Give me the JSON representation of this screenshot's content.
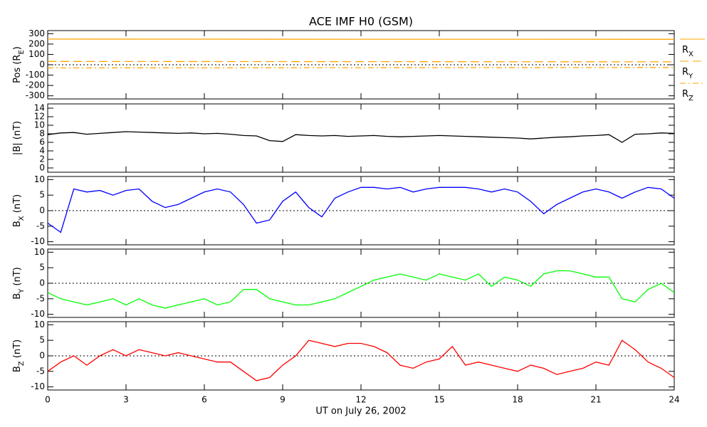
{
  "chart_data": [
    {
      "type": "line",
      "title": "ACE IMF H0 (GSM)",
      "ylabel": [
        "Pos (R",
        "E",
        ")"
      ],
      "ylim": [
        -330,
        330
      ],
      "yticks": [
        -300,
        -200,
        -100,
        0,
        100,
        200,
        300
      ],
      "zero_line": true,
      "series": [
        {
          "name": [
            "R",
            "X"
          ],
          "color": "#ffa500",
          "style": "solid",
          "x": [
            0,
            12,
            24
          ],
          "values": [
            248,
            247,
            246
          ]
        },
        {
          "name": [
            "R",
            "Y"
          ],
          "color": "#ffa500",
          "style": "dashed",
          "x": [
            0,
            12,
            24
          ],
          "values": [
            32,
            30,
            28
          ]
        },
        {
          "name": [
            "R",
            "Z"
          ],
          "color": "#ffa500",
          "style": "dash-dot",
          "x": [
            0,
            12,
            24
          ],
          "values": [
            -30,
            -28,
            -26
          ]
        }
      ]
    },
    {
      "type": "line",
      "ylabel": [
        "|B| (nT)"
      ],
      "ylim": [
        -1,
        15
      ],
      "yticks": [
        0,
        2,
        4,
        6,
        8,
        10,
        12,
        14
      ],
      "zero_line": false,
      "series": [
        {
          "color": "#000000",
          "style": "solid",
          "values": [
            7.8,
            8.2,
            8.3,
            7.9,
            8.1,
            8.3,
            8.5,
            8.4,
            8.3,
            8.2,
            8.1,
            8.2,
            8.0,
            8.1,
            7.9,
            7.6,
            7.5,
            6.4,
            6.2,
            7.8,
            7.6,
            7.5,
            7.6,
            7.4,
            7.5,
            7.6,
            7.4,
            7.3,
            7.4,
            7.5,
            7.6,
            7.5,
            7.4,
            7.3,
            7.2,
            7.1,
            7.0,
            6.8,
            7.0,
            7.2,
            7.3,
            7.5,
            7.6,
            7.8,
            6.0,
            7.9,
            8.0,
            8.2,
            8.1
          ]
        }
      ]
    },
    {
      "type": "line",
      "ylabel": [
        "B",
        "X",
        " (nT)"
      ],
      "ylim": [
        -11,
        11
      ],
      "yticks": [
        -10,
        -5,
        0,
        5,
        10
      ],
      "zero_line": true,
      "series": [
        {
          "color": "#0000ff",
          "style": "solid",
          "values": [
            -4,
            -7,
            7,
            6,
            6.5,
            5,
            6.5,
            7,
            3,
            1,
            2,
            4,
            6,
            7,
            6,
            2,
            -4,
            -3,
            3,
            6,
            1,
            -2,
            4,
            6,
            7.5,
            7.5,
            7,
            7.5,
            6,
            7,
            7.5,
            7.5,
            7.5,
            7,
            6,
            7,
            6,
            3,
            -1,
            2,
            4,
            6,
            7,
            6,
            4,
            6,
            7.5,
            7,
            4
          ]
        }
      ]
    },
    {
      "type": "line",
      "ylabel": [
        "B",
        "Y",
        " (nT)"
      ],
      "ylim": [
        -11,
        11
      ],
      "yticks": [
        -10,
        -5,
        0,
        5,
        10
      ],
      "zero_line": true,
      "series": [
        {
          "color": "#00ff00",
          "style": "solid",
          "values": [
            -3,
            -5,
            -6,
            -7,
            -6,
            -5,
            -7,
            -5,
            -7,
            -8,
            -7,
            -6,
            -5,
            -7,
            -6,
            -2,
            -2,
            -5,
            -6,
            -7,
            -7,
            -6,
            -5,
            -3,
            -1,
            1,
            2,
            3,
            2,
            1,
            3,
            2,
            1,
            3,
            -1,
            2,
            1,
            -1,
            3,
            4,
            4,
            3,
            2,
            2,
            -5,
            -6,
            -2,
            0,
            -3
          ]
        }
      ]
    },
    {
      "type": "line",
      "ylabel": [
        "B",
        "Z",
        " (nT)"
      ],
      "ylim": [
        -11,
        11
      ],
      "yticks": [
        -10,
        -5,
        0,
        5,
        10
      ],
      "zero_line": true,
      "xlabel": "UT on July 26, 2002",
      "xlim": [
        0,
        24
      ],
      "xticks": [
        0,
        3,
        6,
        9,
        12,
        15,
        18,
        21,
        24
      ],
      "x": [
        0,
        0.5,
        1,
        1.5,
        2,
        2.5,
        3,
        3.5,
        4,
        4.5,
        5,
        5.5,
        6,
        6.5,
        7,
        7.5,
        8,
        8.5,
        9,
        9.5,
        10,
        10.5,
        11,
        11.5,
        12,
        12.5,
        13,
        13.5,
        14,
        14.5,
        15,
        15.5,
        16,
        16.5,
        17,
        17.5,
        18,
        18.5,
        19,
        19.5,
        20,
        20.5,
        21,
        21.5,
        22,
        22.5,
        23,
        23.5,
        24
      ],
      "series": [
        {
          "color": "#ff0000",
          "style": "solid",
          "values": [
            -5,
            -2,
            0,
            -3,
            0,
            2,
            0,
            2,
            1,
            0,
            1,
            0,
            -1,
            -2,
            -2,
            -5,
            -8,
            -7,
            -3,
            0,
            5,
            4,
            3,
            4,
            4,
            3,
            1,
            -3,
            -4,
            -2,
            -1,
            3,
            -3,
            -2,
            -3,
            -4,
            -5,
            -3,
            -4,
            -6,
            -5,
            -4,
            -2,
            -3,
            5,
            2,
            -2,
            -4,
            -7
          ]
        }
      ]
    }
  ]
}
